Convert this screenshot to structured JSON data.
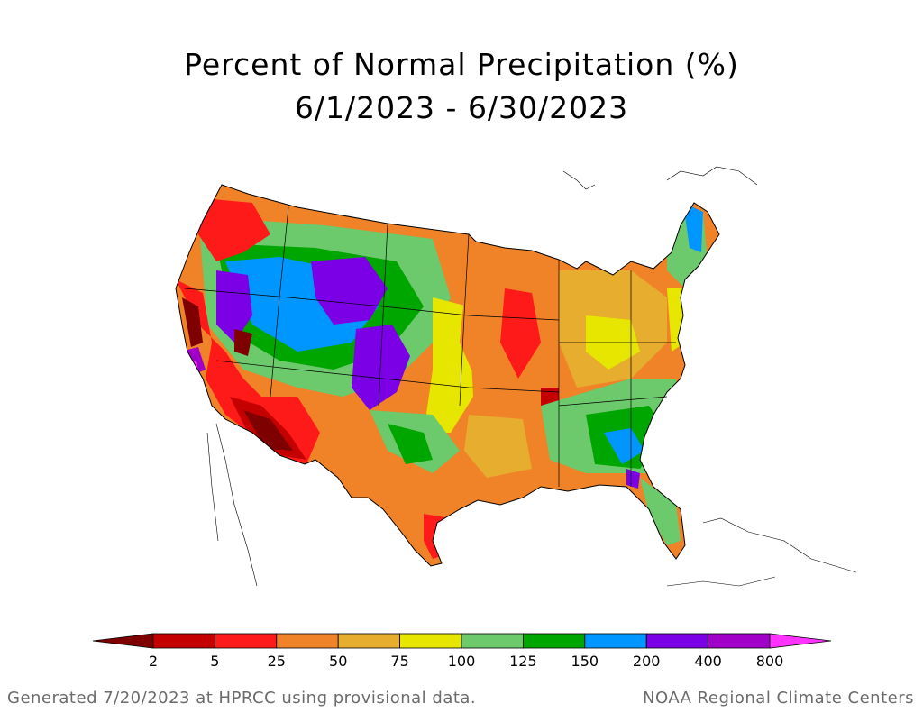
{
  "title": {
    "line1": "Percent of Normal Precipitation (%)",
    "line2": "6/1/2023 - 6/30/2023"
  },
  "legend": {
    "ticks": [
      "2",
      "5",
      "25",
      "50",
      "75",
      "100",
      "125",
      "150",
      "200",
      "400",
      "800"
    ],
    "colors": [
      "#7f0000",
      "#c40000",
      "#ff1a1a",
      "#f08228",
      "#e6ad2e",
      "#e6e600",
      "#6cc96c",
      "#00a600",
      "#0096ff",
      "#7b00e6",
      "#a000c8",
      "#ff33ff"
    ]
  },
  "footer": {
    "left": "Generated 7/20/2023 at HPRCC using provisional data.",
    "right": "NOAA Regional Climate Centers"
  }
}
